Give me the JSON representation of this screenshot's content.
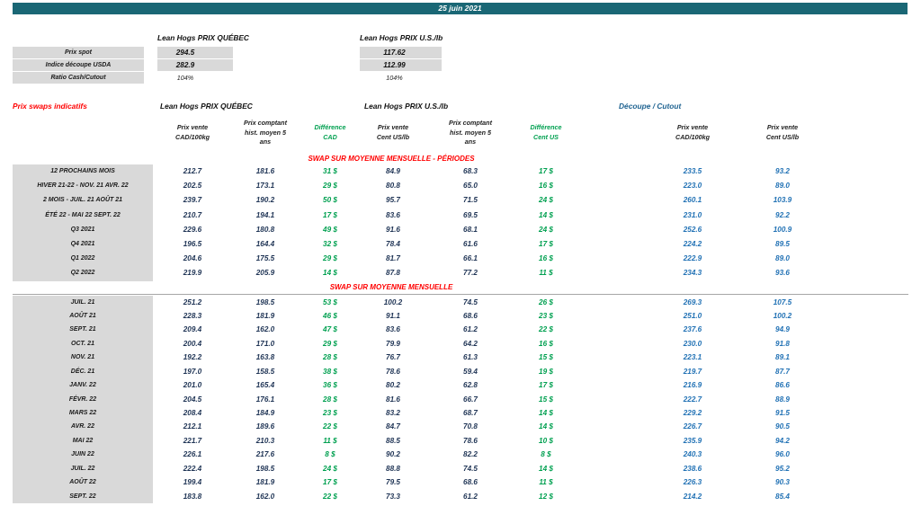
{
  "header": {
    "date": "25 juin 2021"
  },
  "spot_block": {
    "col_quebec": "Lean Hogs PRIX QUÉBEC",
    "col_us": "Lean Hogs PRIX U.S./lb",
    "rows": [
      {
        "label": "Prix spot",
        "qc": "294.5",
        "us": "117.62"
      },
      {
        "label": "Indice découpe USDA",
        "qc": "282.9",
        "us": "112.99"
      },
      {
        "label": "Ratio Cash/Cutout",
        "qc": "104%",
        "us": "104%"
      }
    ]
  },
  "swap_table": {
    "title": "Prix swaps indicatifs",
    "groups": {
      "quebec": "Lean Hogs PRIX QUÉBEC",
      "us": "Lean Hogs PRIX U.S./lb",
      "cutout": "Découpe / Cutout"
    },
    "columns": [
      "Prix vente\nCAD/100kg",
      "Prix comptant\nhist. moyen 5\nans",
      "Différence\nCAD",
      "Prix vente\nCent US/lb",
      "Prix comptant\nhist. moyen 5\nans",
      "Différence\nCent US",
      "Prix vente\nCAD/100kg",
      "Prix vente\nCent US/lb"
    ],
    "sections": [
      {
        "title": "SWAP SUR MOYENNE MENSUELLE - PÉRIODES",
        "rows": [
          {
            "label": "12 PROCHAINS MOIS",
            "v": [
              "212.7",
              "181.6",
              "31 $",
              "84.9",
              "68.3",
              "17 $",
              "233.5",
              "93.2"
            ]
          },
          {
            "label": "HIVER 21-22 - NOV. 21 AVR. 22",
            "v": [
              "202.5",
              "173.1",
              "29 $",
              "80.8",
              "65.0",
              "16 $",
              "223.0",
              "89.0"
            ]
          },
          {
            "label": "2 MOIS - JUIL. 21 AOÛT 21",
            "v": [
              "239.7",
              "190.2",
              "50 $",
              "95.7",
              "71.5",
              "24 $",
              "260.1",
              "103.9"
            ]
          },
          {
            "label": "ÉTÉ 22 - MAI 22 SEPT. 22",
            "v": [
              "210.7",
              "194.1",
              "17 $",
              "83.6",
              "69.5",
              "14 $",
              "231.0",
              "92.2"
            ]
          },
          {
            "label": "Q3 2021",
            "v": [
              "229.6",
              "180.8",
              "49 $",
              "91.6",
              "68.1",
              "24 $",
              "252.6",
              "100.9"
            ]
          },
          {
            "label": "Q4 2021",
            "v": [
              "196.5",
              "164.4",
              "32 $",
              "78.4",
              "61.6",
              "17 $",
              "224.2",
              "89.5"
            ]
          },
          {
            "label": "Q1 2022",
            "v": [
              "204.6",
              "175.5",
              "29 $",
              "81.7",
              "66.1",
              "16 $",
              "222.9",
              "89.0"
            ]
          },
          {
            "label": "Q2 2022",
            "v": [
              "219.9",
              "205.9",
              "14 $",
              "87.8",
              "77.2",
              "11 $",
              "234.3",
              "93.6"
            ]
          }
        ]
      },
      {
        "title": "SWAP SUR MOYENNE MENSUELLE",
        "rows": [
          {
            "label": "JUIL. 21",
            "v": [
              "251.2",
              "198.5",
              "53 $",
              "100.2",
              "74.5",
              "26 $",
              "269.3",
              "107.5"
            ]
          },
          {
            "label": "AOÛT 21",
            "v": [
              "228.3",
              "181.9",
              "46 $",
              "91.1",
              "68.6",
              "23 $",
              "251.0",
              "100.2"
            ]
          },
          {
            "label": "SEPT. 21",
            "v": [
              "209.4",
              "162.0",
              "47 $",
              "83.6",
              "61.2",
              "22 $",
              "237.6",
              "94.9"
            ]
          },
          {
            "label": "OCT. 21",
            "v": [
              "200.4",
              "171.0",
              "29 $",
              "79.9",
              "64.2",
              "16 $",
              "230.0",
              "91.8"
            ]
          },
          {
            "label": "NOV. 21",
            "v": [
              "192.2",
              "163.8",
              "28 $",
              "76.7",
              "61.3",
              "15 $",
              "223.1",
              "89.1"
            ]
          },
          {
            "label": "DÉC. 21",
            "v": [
              "197.0",
              "158.5",
              "38 $",
              "78.6",
              "59.4",
              "19 $",
              "219.7",
              "87.7"
            ]
          },
          {
            "label": "JANV. 22",
            "v": [
              "201.0",
              "165.4",
              "36 $",
              "80.2",
              "62.8",
              "17 $",
              "216.9",
              "86.6"
            ]
          },
          {
            "label": "FÉVR. 22",
            "v": [
              "204.5",
              "176.1",
              "28 $",
              "81.6",
              "66.7",
              "15 $",
              "222.7",
              "88.9"
            ]
          },
          {
            "label": "MARS 22",
            "v": [
              "208.4",
              "184.9",
              "23 $",
              "83.2",
              "68.7",
              "14 $",
              "229.2",
              "91.5"
            ]
          },
          {
            "label": "AVR. 22",
            "v": [
              "212.1",
              "189.6",
              "22 $",
              "84.7",
              "70.8",
              "14 $",
              "226.7",
              "90.5"
            ]
          },
          {
            "label": "MAI 22",
            "v": [
              "221.7",
              "210.3",
              "11 $",
              "88.5",
              "78.6",
              "10 $",
              "235.9",
              "94.2"
            ]
          },
          {
            "label": "JUIN 22",
            "v": [
              "226.1",
              "217.6",
              "8 $",
              "90.2",
              "82.2",
              "8 $",
              "240.3",
              "96.0"
            ]
          },
          {
            "label": "JUIL. 22",
            "v": [
              "222.4",
              "198.5",
              "24 $",
              "88.8",
              "74.5",
              "14 $",
              "238.6",
              "95.2"
            ]
          },
          {
            "label": "AOÛT 22",
            "v": [
              "199.4",
              "181.9",
              "17 $",
              "79.5",
              "68.6",
              "11 $",
              "226.3",
              "90.3"
            ]
          },
          {
            "label": "SEPT. 22",
            "v": [
              "183.8",
              "162.0",
              "22 $",
              "73.3",
              "61.2",
              "12 $",
              "214.2",
              "85.4"
            ]
          }
        ]
      }
    ]
  },
  "colors": {
    "banner": "#1A6775",
    "red": "#FF0000",
    "green": "#00A050",
    "cutout_blue": "#2272B5",
    "cutout_header": "#1F6391",
    "cell_gray": "#D9D9D9"
  }
}
